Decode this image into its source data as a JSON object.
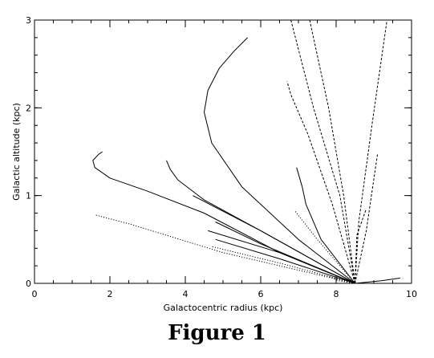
{
  "caption": "Figure 1",
  "chart_data": {
    "type": "line",
    "xlabel": "Galactocentric radius (kpc)",
    "ylabel": "Galactic altitude (kpc)",
    "xlim": [
      0,
      10
    ],
    "ylim": [
      0,
      3
    ],
    "xticks": [
      0,
      2,
      4,
      6,
      8,
      10
    ],
    "yticks": [
      0,
      1,
      2,
      3
    ],
    "x_minor_step": 0.5,
    "y_minor_step": 0.2,
    "grid": false,
    "line_color": "#000000",
    "series": [
      {
        "style": "solid",
        "points": [
          [
            8.5,
            0
          ],
          [
            6.5,
            0.35
          ],
          [
            4.5,
            0.8
          ],
          [
            3,
            1.05
          ],
          [
            2,
            1.2
          ],
          [
            1.6,
            1.32
          ],
          [
            1.55,
            1.4
          ],
          [
            1.7,
            1.47
          ],
          [
            1.8,
            1.5
          ]
        ]
      },
      {
        "style": "dotted",
        "points": [
          [
            8.5,
            0
          ],
          [
            5,
            0.35
          ],
          [
            2.5,
            0.68
          ],
          [
            1.6,
            0.78
          ]
        ]
      },
      {
        "style": "solid",
        "points": [
          [
            8.5,
            0
          ],
          [
            6,
            0.6
          ],
          [
            4.5,
            0.95
          ],
          [
            3.8,
            1.18
          ],
          [
            3.6,
            1.3
          ],
          [
            3.5,
            1.4
          ]
        ]
      },
      {
        "style": "solid",
        "points": [
          [
            8.5,
            0
          ],
          [
            7,
            0.5
          ],
          [
            5.5,
            1.1
          ],
          [
            4.7,
            1.6
          ],
          [
            4.5,
            1.95
          ],
          [
            4.6,
            2.2
          ],
          [
            4.9,
            2.45
          ],
          [
            5.3,
            2.65
          ],
          [
            5.65,
            2.8
          ]
        ]
      },
      {
        "style": "solid",
        "points": [
          [
            8.5,
            0
          ],
          [
            6,
            0.6
          ],
          [
            4.2,
            1.0
          ]
        ]
      },
      {
        "style": "solid",
        "points": [
          [
            8.5,
            0
          ],
          [
            6,
            0.45
          ],
          [
            4.8,
            0.7
          ]
        ]
      },
      {
        "style": "solid",
        "points": [
          [
            8.5,
            0
          ],
          [
            6.5,
            0.35
          ],
          [
            4.6,
            0.6
          ]
        ]
      },
      {
        "style": "solid",
        "points": [
          [
            8.5,
            0
          ],
          [
            6.5,
            0.28
          ],
          [
            4.8,
            0.5
          ]
        ]
      },
      {
        "style": "dotted",
        "points": [
          [
            8.5,
            0
          ],
          [
            6.6,
            0.22
          ],
          [
            4.7,
            0.42
          ]
        ]
      },
      {
        "style": "solid",
        "points": [
          [
            8.5,
            0
          ],
          [
            7.6,
            0.5
          ],
          [
            7.2,
            0.9
          ],
          [
            7.1,
            1.1
          ],
          [
            6.95,
            1.32
          ]
        ]
      },
      {
        "style": "dotted",
        "points": [
          [
            8.5,
            0
          ],
          [
            7.5,
            0.5
          ],
          [
            6.9,
            0.83
          ]
        ]
      },
      {
        "style": "dashed",
        "points": [
          [
            8.5,
            0
          ],
          [
            8.1,
            1.0
          ],
          [
            7.4,
            2.0
          ],
          [
            6.8,
            3.0
          ]
        ]
      },
      {
        "style": "dashed",
        "points": [
          [
            8.5,
            0
          ],
          [
            8.2,
            1.0
          ],
          [
            7.8,
            2.0
          ],
          [
            7.35,
            2.9
          ],
          [
            7.3,
            3.0
          ]
        ]
      },
      {
        "style": "dashed",
        "points": [
          [
            8.5,
            0
          ],
          [
            7.9,
            0.9
          ],
          [
            7.25,
            1.7
          ],
          [
            6.8,
            2.15
          ],
          [
            6.7,
            2.3
          ]
        ]
      },
      {
        "style": "dashed",
        "points": [
          [
            8.5,
            0
          ],
          [
            8.55,
            0.55
          ],
          [
            8.8,
            0.85
          ]
        ]
      },
      {
        "style": "dashed",
        "points": [
          [
            8.5,
            0
          ],
          [
            8.6,
            0.7
          ],
          [
            8.95,
            1.8
          ],
          [
            9.35,
            3.0
          ]
        ]
      },
      {
        "style": "dashed",
        "points": [
          [
            8.5,
            0
          ],
          [
            8.8,
            0.6
          ],
          [
            9.1,
            1.48
          ]
        ]
      },
      {
        "style": "solid",
        "points": [
          [
            8.5,
            0
          ],
          [
            9.2,
            0.03
          ],
          [
            9.7,
            0.06
          ]
        ]
      },
      {
        "style": "dotted",
        "points": [
          [
            8.5,
            0
          ],
          [
            8.05,
            0.03
          ],
          [
            7.8,
            0.08
          ]
        ]
      }
    ]
  }
}
